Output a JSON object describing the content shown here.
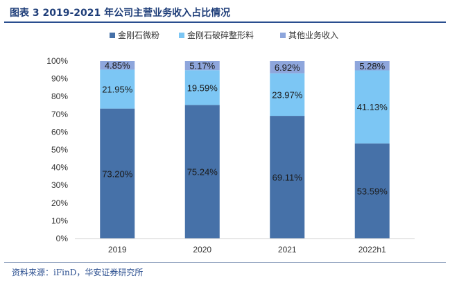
{
  "title": "图表 3  2019-2021 年公司主营业务收入占比情况",
  "source": "资料来源：iFinD，华安证券研究所",
  "chart_data": {
    "type": "bar",
    "stacked": true,
    "categories": [
      "2019",
      "2020",
      "2021",
      "2022h1"
    ],
    "series": [
      {
        "name": "金刚石微粉",
        "values": [
          73.2,
          75.24,
          69.11,
          53.59
        ],
        "labels": [
          "73.20%",
          "75.24%",
          "69.11%",
          "53.59%"
        ],
        "color": "#4671a8"
      },
      {
        "name": "金刚石破碎整形料",
        "values": [
          21.95,
          19.59,
          23.97,
          41.13
        ],
        "labels": [
          "21.95%",
          "19.59%",
          "23.97%",
          "41.13%"
        ],
        "color": "#7cc6f4"
      },
      {
        "name": "其他业务收入",
        "values": [
          4.85,
          5.17,
          6.92,
          5.28
        ],
        "labels": [
          "4.85%",
          "5.17%",
          "6.92%",
          "5.28%"
        ],
        "color": "#8ea6dc"
      }
    ],
    "y_ticks": [
      "0%",
      "10%",
      "20%",
      "30%",
      "40%",
      "50%",
      "60%",
      "70%",
      "80%",
      "90%",
      "100%"
    ],
    "ylim": [
      0,
      100
    ],
    "grid": false,
    "legend": "top"
  }
}
